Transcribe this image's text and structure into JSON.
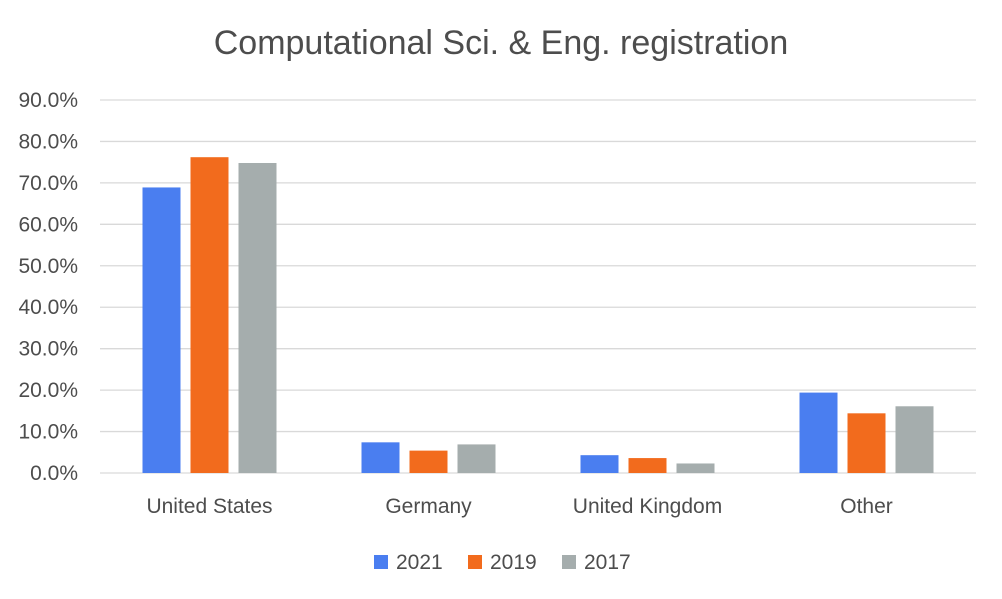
{
  "chart_data": {
    "type": "bar",
    "title": "Computational Sci. & Eng. registration",
    "categories": [
      "United States",
      "Germany",
      "United Kingdom",
      "Other"
    ],
    "series": [
      {
        "name": "2021",
        "color": "#4a7ef0",
        "values": [
          68.9,
          7.4,
          4.3,
          19.4
        ]
      },
      {
        "name": "2019",
        "color": "#f26b1d",
        "values": [
          76.2,
          5.4,
          3.6,
          14.4
        ]
      },
      {
        "name": "2017",
        "color": "#a5adad",
        "values": [
          74.8,
          6.9,
          2.3,
          16.1
        ]
      }
    ],
    "y_ticks": [
      "0.0%",
      "10.0%",
      "20.0%",
      "30.0%",
      "40.0%",
      "50.0%",
      "60.0%",
      "70.0%",
      "80.0%",
      "90.0%"
    ],
    "ylim": [
      0,
      90
    ],
    "grid": true,
    "legend_position": "bottom"
  }
}
